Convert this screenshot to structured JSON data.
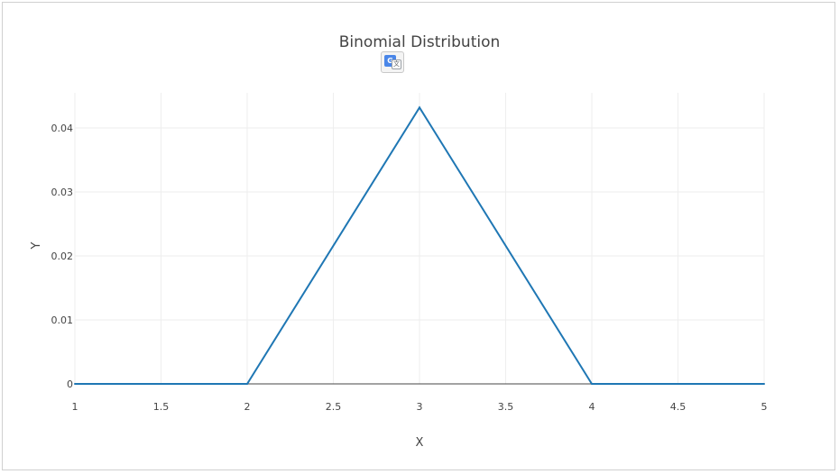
{
  "chart_data": {
    "type": "line",
    "title": "Binomial Distribution",
    "xlabel": "X",
    "ylabel": "Y",
    "xlim": [
      1,
      5
    ],
    "ylim": [
      0,
      0.0455
    ],
    "x_ticks": [
      1,
      1.5,
      2,
      2.5,
      3,
      3.5,
      4,
      4.5,
      5
    ],
    "x_tick_labels": [
      "1",
      "1.5",
      "2",
      "2.5",
      "3",
      "3.5",
      "4",
      "4.5",
      "5"
    ],
    "y_ticks": [
      0,
      0.01,
      0.02,
      0.03,
      0.04
    ],
    "y_tick_labels": [
      "0",
      "0.01",
      "0.02",
      "0.03",
      "0.04"
    ],
    "grid": true,
    "series": [
      {
        "color": "#1f77b4",
        "x": [
          1,
          2,
          3,
          4,
          5
        ],
        "y": [
          0,
          0,
          0.0432,
          0,
          0
        ]
      }
    ]
  },
  "ui": {
    "translate_icon": "google-translate-icon",
    "translate_glyph_g": "G",
    "translate_glyph_a": "文"
  }
}
